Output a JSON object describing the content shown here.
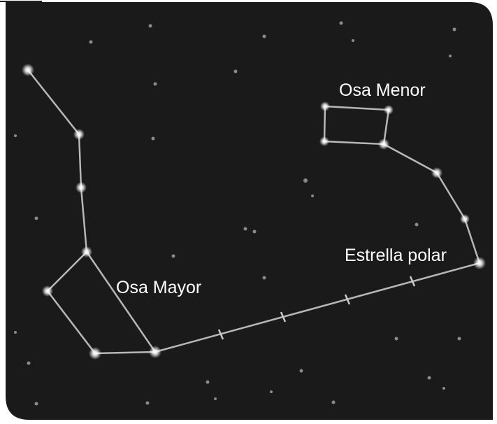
{
  "labels": {
    "little_dipper": "Osa Menor",
    "big_dipper": "Osa Mayor",
    "polaris": "Estrella polar"
  }
}
